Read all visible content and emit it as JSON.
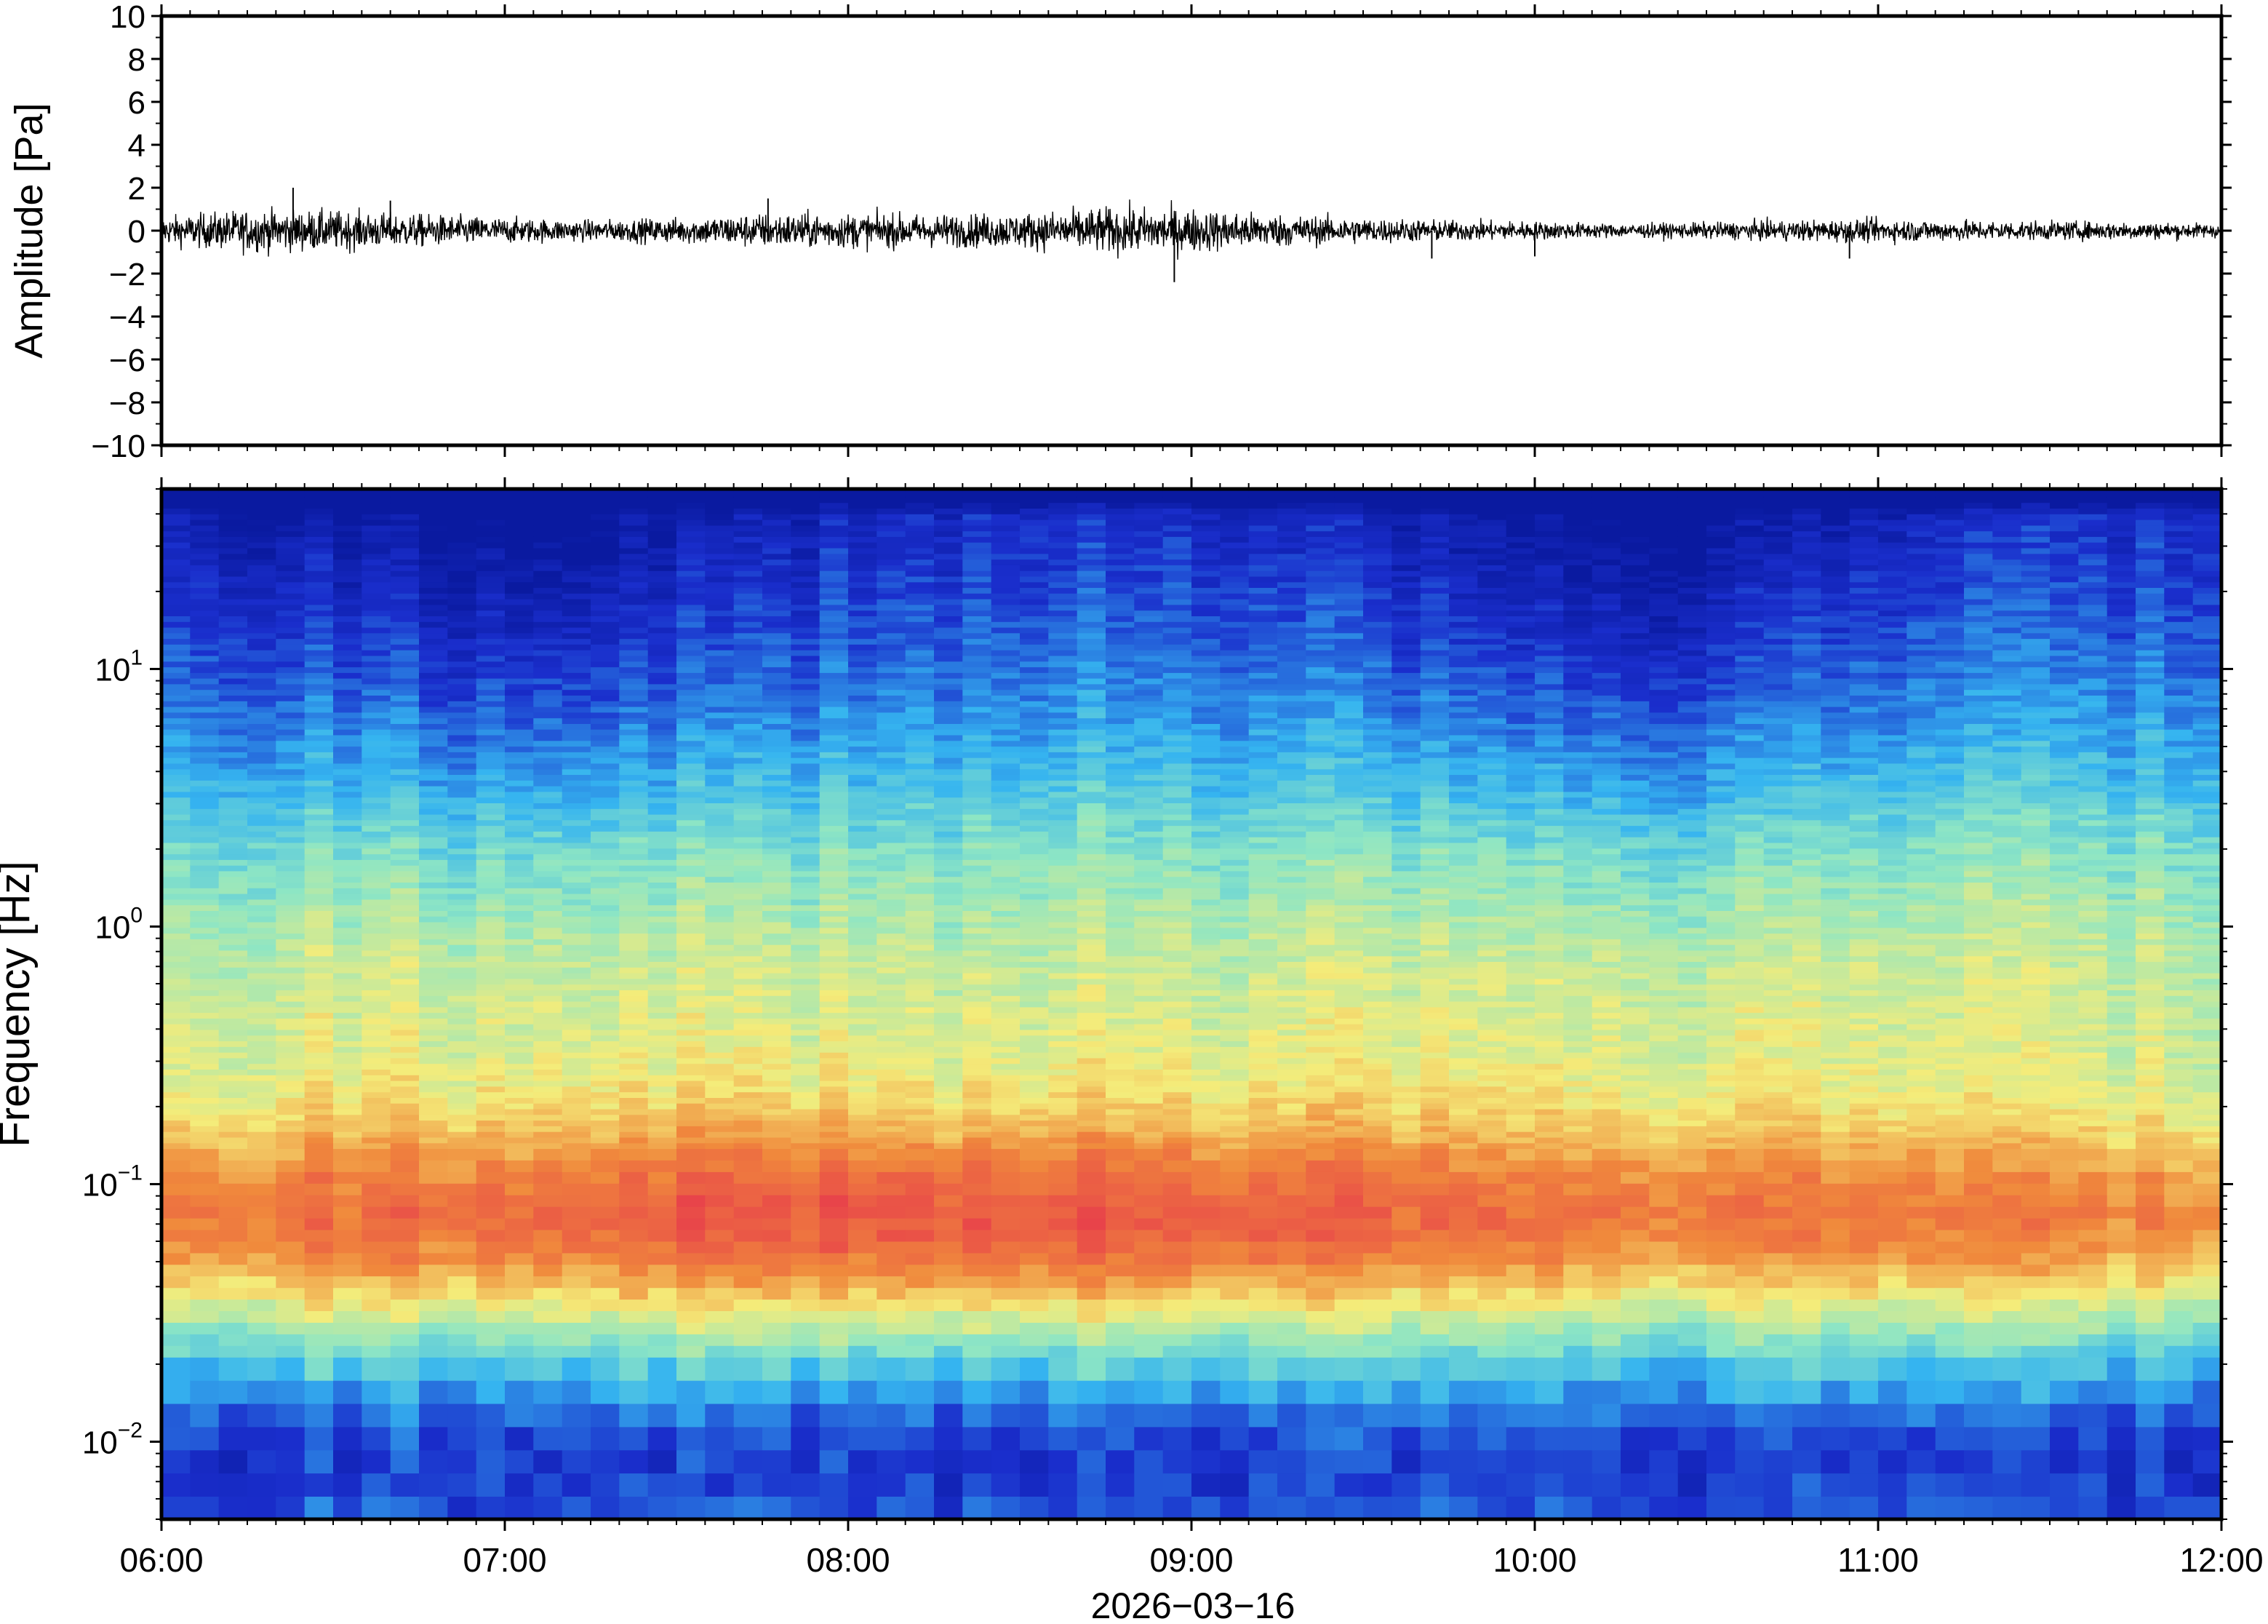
{
  "chart_data": [
    {
      "type": "line",
      "panel": "waveform",
      "ylabel": "Amplitude [Pa]",
      "ylim": [
        -10,
        10
      ],
      "yticks": [
        10,
        8,
        6,
        4,
        2,
        0,
        -2,
        -4,
        -6,
        -8,
        -10
      ],
      "ytick_labels": [
        "10",
        "8",
        "6",
        "4",
        "2",
        "0",
        "−2",
        "−4",
        "−6",
        "−8",
        "−10"
      ],
      "x_start": "2026-03-16T06:00",
      "x_end": "2026-03-16T12:00",
      "series": [
        {
          "color": "#000000",
          "envelope_t": [
            "06:00",
            "06:15",
            "06:30",
            "06:45",
            "07:00",
            "07:15",
            "07:30",
            "07:45",
            "08:00",
            "08:15",
            "08:30",
            "08:45",
            "09:00",
            "09:15",
            "09:30",
            "09:45",
            "10:00",
            "10:15",
            "10:30",
            "10:45",
            "11:00",
            "11:15",
            "11:30",
            "11:45",
            "12:00"
          ],
          "envelope_amp": [
            0.6,
            0.9,
            0.85,
            0.7,
            0.55,
            0.45,
            0.55,
            0.75,
            0.75,
            0.7,
            0.75,
            1.0,
            0.95,
            0.7,
            0.55,
            0.45,
            0.4,
            0.3,
            0.35,
            0.45,
            0.5,
            0.45,
            0.4,
            0.4,
            0.3
          ],
          "spikes": [
            {
              "t": "06:23",
              "value": 2.0
            },
            {
              "t": "06:40",
              "value": 1.4
            },
            {
              "t": "07:46",
              "value": 1.5
            },
            {
              "t": "08:57",
              "value": -2.4
            },
            {
              "t": "09:42",
              "value": -1.3
            },
            {
              "t": "10:00",
              "value": -1.2
            },
            {
              "t": "10:55",
              "value": -1.3
            }
          ]
        }
      ]
    },
    {
      "type": "heatmap",
      "panel": "spectrogram",
      "ylabel": "Frequency [Hz]",
      "yscale": "log",
      "ylim_hz": [
        0.005,
        50
      ],
      "yticks": [
        {
          "base": "10",
          "exp": "1"
        },
        {
          "base": "10",
          "exp": "0"
        },
        {
          "base": "10",
          "exp": "−1"
        },
        {
          "base": "10",
          "exp": "−2"
        }
      ],
      "xlabel": "2026−03−16",
      "xtick_labels": [
        "06:00",
        "07:00",
        "08:00",
        "09:00",
        "10:00",
        "11:00",
        "12:00"
      ],
      "colormap": "spectral (blue = low power, red = high power)",
      "colors": {
        "low": "#1a2ecc",
        "mid_low": "#35b4f0",
        "mid": "#8ee6c4",
        "mid_high": "#f4ec7a",
        "high": "#f08a3c",
        "peak": "#e8434a"
      },
      "features": [
        {
          "description": "band",
          "freq_hz": [
            0.04,
            0.12
          ],
          "level": "high",
          "peaks_at": [
            "07:45",
            "08:50"
          ]
        },
        {
          "description": "band",
          "freq_hz": [
            0.5,
            5
          ],
          "level": "mid"
        },
        {
          "description": "band",
          "freq_hz": [
            5,
            50
          ],
          "level": "low",
          "quietest_at": [
            "07:00",
            "10:15"
          ]
        },
        {
          "description": "band",
          "freq_hz": [
            0.005,
            0.015
          ],
          "level": "mid_low"
        }
      ]
    }
  ]
}
